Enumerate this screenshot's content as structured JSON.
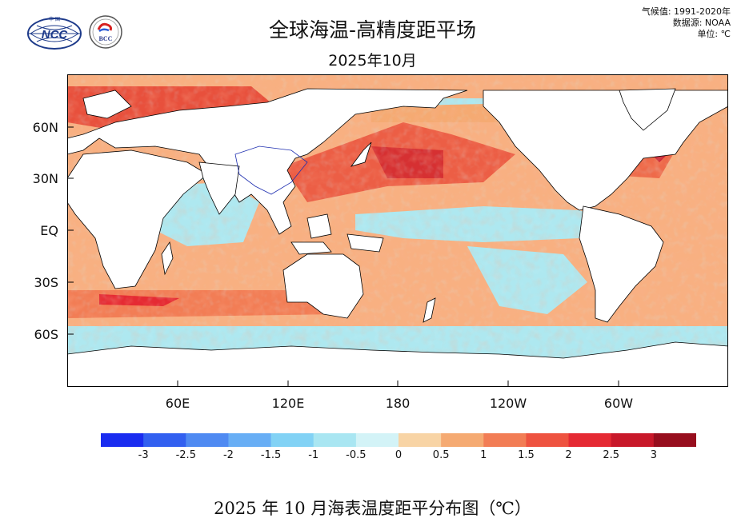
{
  "header": {
    "title": "全球海温-高精度距平场",
    "subtitle": "2025年10月",
    "meta": [
      "气候值: 1991-2020年",
      "数据源: NOAA",
      "单位: ℃"
    ]
  },
  "logos": {
    "left": {
      "name": "NCC",
      "text": "NCC",
      "top_text": "中 国"
    },
    "right": {
      "name": "BCC",
      "text": "BCC"
    }
  },
  "map": {
    "lat_labels": [
      "60N",
      "30N",
      "EQ",
      "30S",
      "60S"
    ],
    "lon_labels": [
      "60E",
      "120E",
      "180",
      "120W",
      "60W"
    ],
    "colors": {
      "ocean_cool": "#aee8f0",
      "ocean_warm": "#f7a46a",
      "land": "#ffffff",
      "outline": "#000000"
    }
  },
  "colorbar": {
    "colors": [
      "#1a2cf0",
      "#3260f0",
      "#4f8af2",
      "#68aef5",
      "#82d2f5",
      "#a9e6f2",
      "#d3f3f7",
      "#f8d4a5",
      "#f5aa72",
      "#f27d55",
      "#ee5340",
      "#e52a33",
      "#c8182a",
      "#970e1e"
    ],
    "ticks": [
      "-3",
      "-2.5",
      "-2",
      "-1.5",
      "-1",
      "-0.5",
      "0",
      "0.5",
      "1",
      "1.5",
      "2",
      "2.5",
      "3"
    ]
  },
  "caption": "2025 年 10 月海表温度距平分布图（℃）"
}
